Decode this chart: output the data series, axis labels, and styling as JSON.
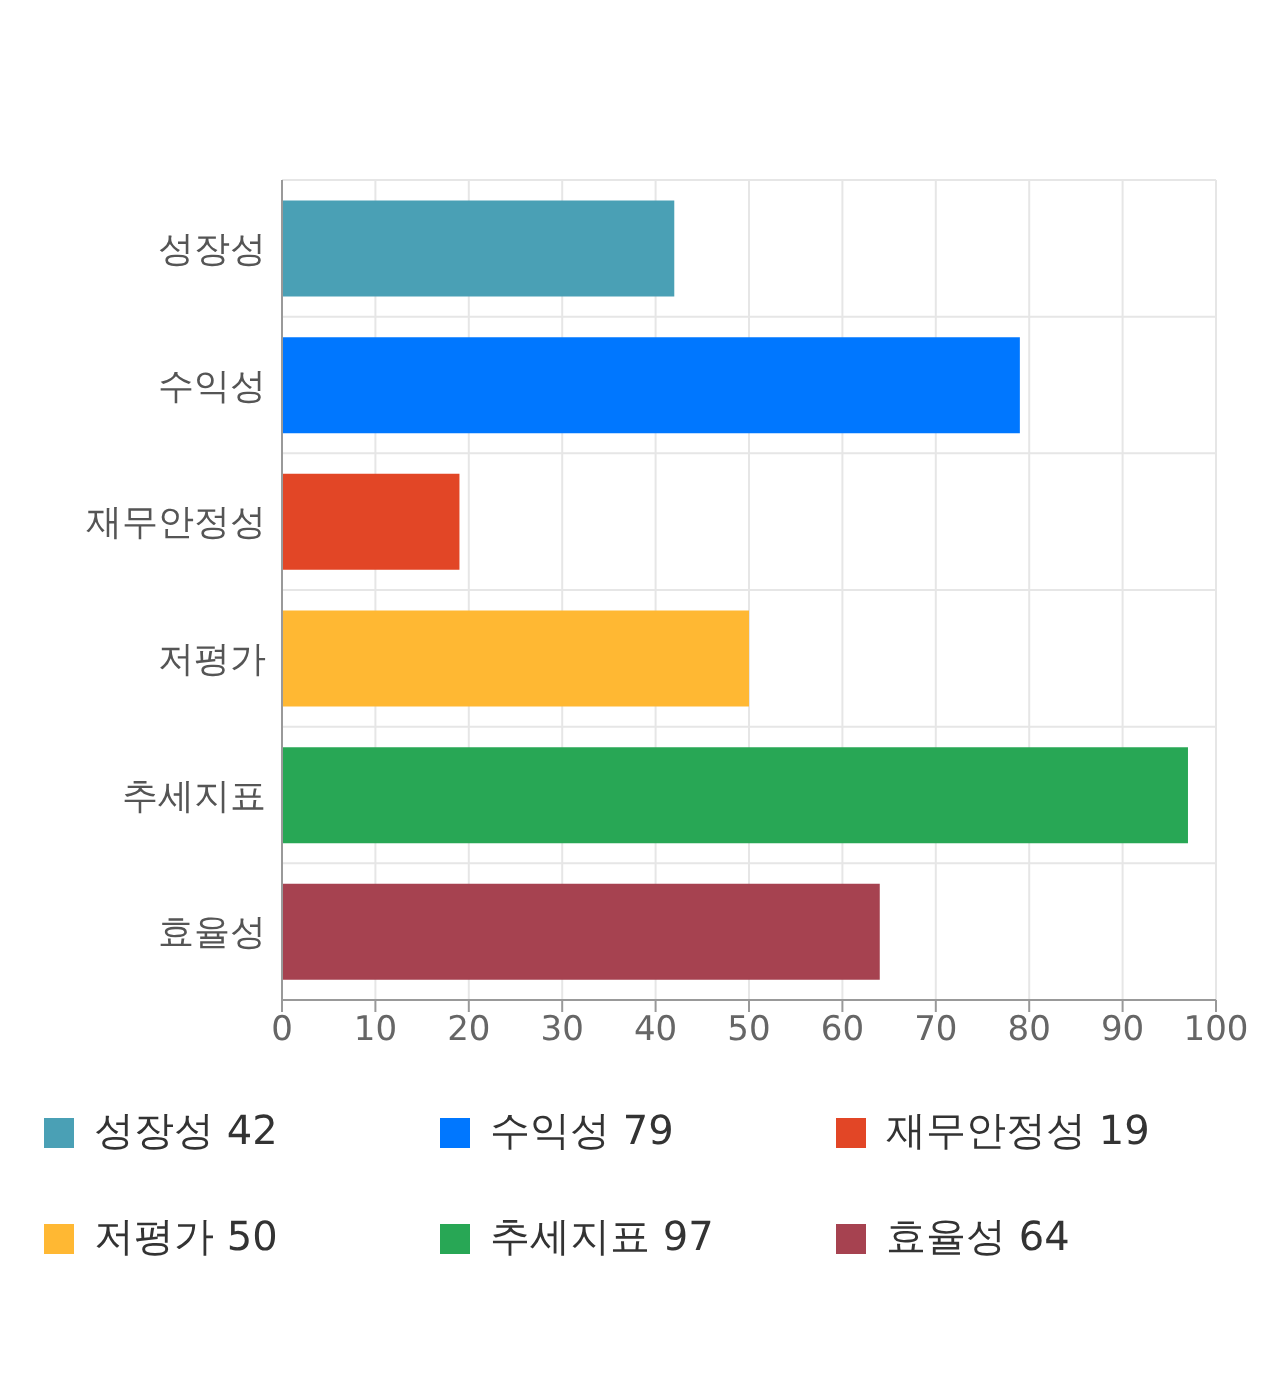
{
  "chart_data": {
    "type": "bar",
    "orientation": "horizontal",
    "stacked": true,
    "categories": [
      "성장성",
      "수익성",
      "재무안정성",
      "저평가",
      "추세지표",
      "효율성"
    ],
    "series": [
      {
        "name": "성장성 42",
        "color": "#4aa0b5",
        "values": [
          42,
          null,
          null,
          null,
          null,
          null
        ]
      },
      {
        "name": "수익성 79",
        "color": "#0077ff",
        "values": [
          null,
          79,
          null,
          null,
          null,
          null
        ]
      },
      {
        "name": "재무안정성 19",
        "color": "#e24626",
        "values": [
          null,
          null,
          19,
          null,
          null,
          null
        ]
      },
      {
        "name": "저평가 50",
        "color": "#ffb833",
        "values": [
          null,
          null,
          null,
          50,
          null,
          null
        ]
      },
      {
        "name": "추세지표 97",
        "color": "#28a755",
        "values": [
          null,
          null,
          null,
          null,
          97,
          null
        ]
      },
      {
        "name": "효율성 64",
        "color": "#a64250",
        "values": [
          null,
          null,
          null,
          null,
          null,
          64
        ]
      }
    ],
    "xlim": [
      0,
      100
    ],
    "xticks": [
      0,
      10,
      20,
      30,
      40,
      50,
      60,
      70,
      80,
      90,
      100
    ],
    "grid": true,
    "legend": "bottom"
  }
}
